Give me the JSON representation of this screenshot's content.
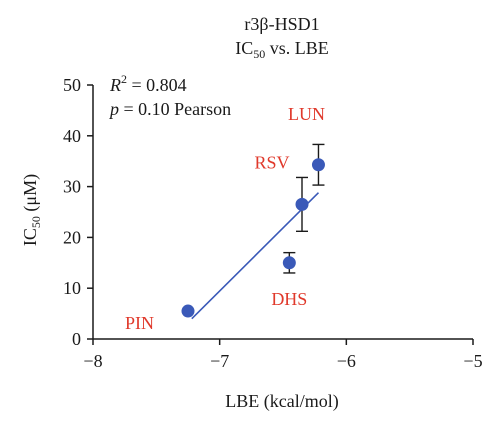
{
  "chart_data": {
    "type": "scatter",
    "title_line1": "r3β-HSD1",
    "title_line2_main": "IC",
    "title_line2_sub": "50",
    "title_line2_rest": " vs. LBE",
    "xlabel": "LBE (kcal/mol)",
    "ylabel_main": "IC",
    "ylabel_sub": "50",
    "ylabel_rest": " (μM)",
    "xlim": [
      -8,
      -5
    ],
    "ylim": [
      0,
      50
    ],
    "xticks": [
      -8,
      -7,
      -6,
      -5
    ],
    "xtick_labels": [
      "−8",
      "−7",
      "−6",
      "−5"
    ],
    "yticks": [
      0,
      10,
      20,
      30,
      40,
      50
    ],
    "ytick_labels": [
      "0",
      "10",
      "20",
      "30",
      "40",
      "50"
    ],
    "annotation_r2_symbol": "R",
    "annotation_r2_sup": "2",
    "annotation_r2_value": " = 0.804",
    "annotation_p_symbol": "p",
    "annotation_p_value": " = 0.10 Pearson",
    "points": [
      {
        "label": "PIN",
        "x": -7.25,
        "y": 5.5,
        "err": 0
      },
      {
        "label": "DHS",
        "x": -6.45,
        "y": 15.0,
        "err": 2.0
      },
      {
        "label": "RSV",
        "x": -6.35,
        "y": 26.5,
        "err": 5.3
      },
      {
        "label": "LUN",
        "x": -6.22,
        "y": 34.3,
        "err": 4.0
      }
    ],
    "fit_line": {
      "x": [
        -7.22,
        -6.22
      ],
      "y": [
        4.0,
        28.8
      ]
    },
    "colors": {
      "point": "#3a59b8",
      "fit": "#3a59b8",
      "label": "#e0392b",
      "axis": "#1a1a1a"
    }
  }
}
